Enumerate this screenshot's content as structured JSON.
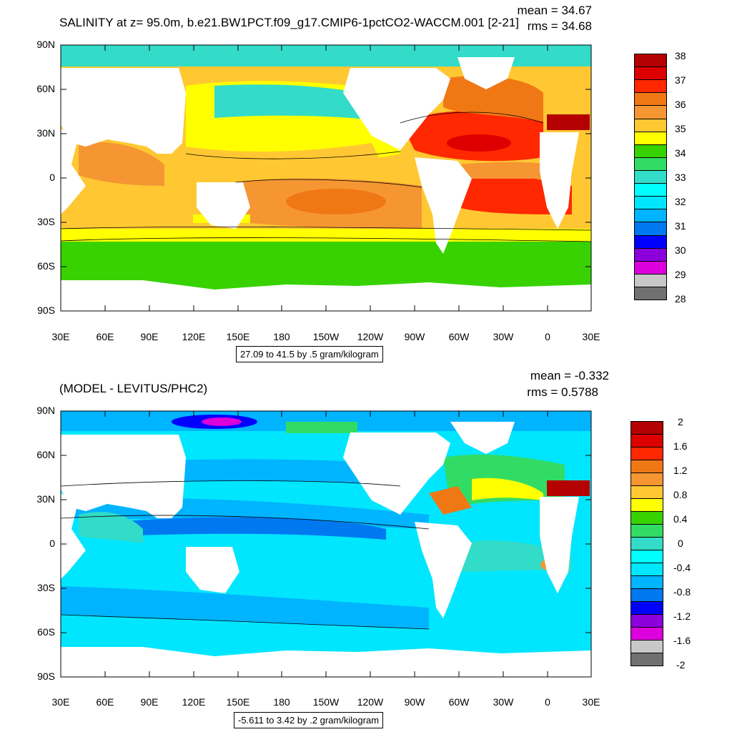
{
  "panel1": {
    "title": "SALINITY at z=  95.0m, b.e21.BW1PCT.f09_g17.CMIP6-1pctCO2-WACCM.001 [2-21]",
    "mean": "mean = 34.67",
    "rms": "rms = 34.68",
    "range_label": "27.09 to 41.5 by .5 gram/kilogram",
    "colorbar_labels": [
      "38",
      "37",
      "36",
      "35",
      "34",
      "33",
      "32",
      "31",
      "30",
      "29",
      "28"
    ],
    "colorbar_colors": [
      "#b40000",
      "#dc0000",
      "#ff2800",
      "#f07814",
      "#f59632",
      "#ffc832",
      "#ffff00",
      "#37d200",
      "#32dc64",
      "#32dcc8",
      "#00ffff",
      "#00e6ff",
      "#00b4ff",
      "#0078f0",
      "#0000ff",
      "#8c00dc",
      "#dc00dc",
      "#c8c8c8",
      "#707070"
    ]
  },
  "panel2": {
    "title": "(MODEL - LEVITUS/PHC2)",
    "mean": "mean = -0.332",
    "rms": "rms = 0.5788",
    "range_label": "-5.611 to 3.42 by .2 gram/kilogram",
    "colorbar_labels": [
      "2",
      "1.6",
      "1.2",
      "0.8",
      "0.4",
      "0",
      "-0.4",
      "-0.8",
      "-1.2",
      "-1.6",
      "-2"
    ],
    "colorbar_colors": [
      "#b40000",
      "#dc0000",
      "#ff2800",
      "#f07814",
      "#f59632",
      "#ffc832",
      "#ffff00",
      "#37d200",
      "#32dc64",
      "#32dcc8",
      "#00ffff",
      "#00e6ff",
      "#00b4ff",
      "#0078f0",
      "#0000ff",
      "#8c00dc",
      "#dc00dc",
      "#c8c8c8",
      "#707070"
    ]
  },
  "axes": {
    "lat_labels": [
      "90N",
      "60N",
      "30N",
      "0",
      "30S",
      "60S",
      "90S"
    ],
    "lon_labels": [
      "30E",
      "60E",
      "90E",
      "120E",
      "150E",
      "180",
      "150W",
      "120W",
      "90W",
      "60W",
      "30W",
      "0",
      "30E"
    ]
  }
}
